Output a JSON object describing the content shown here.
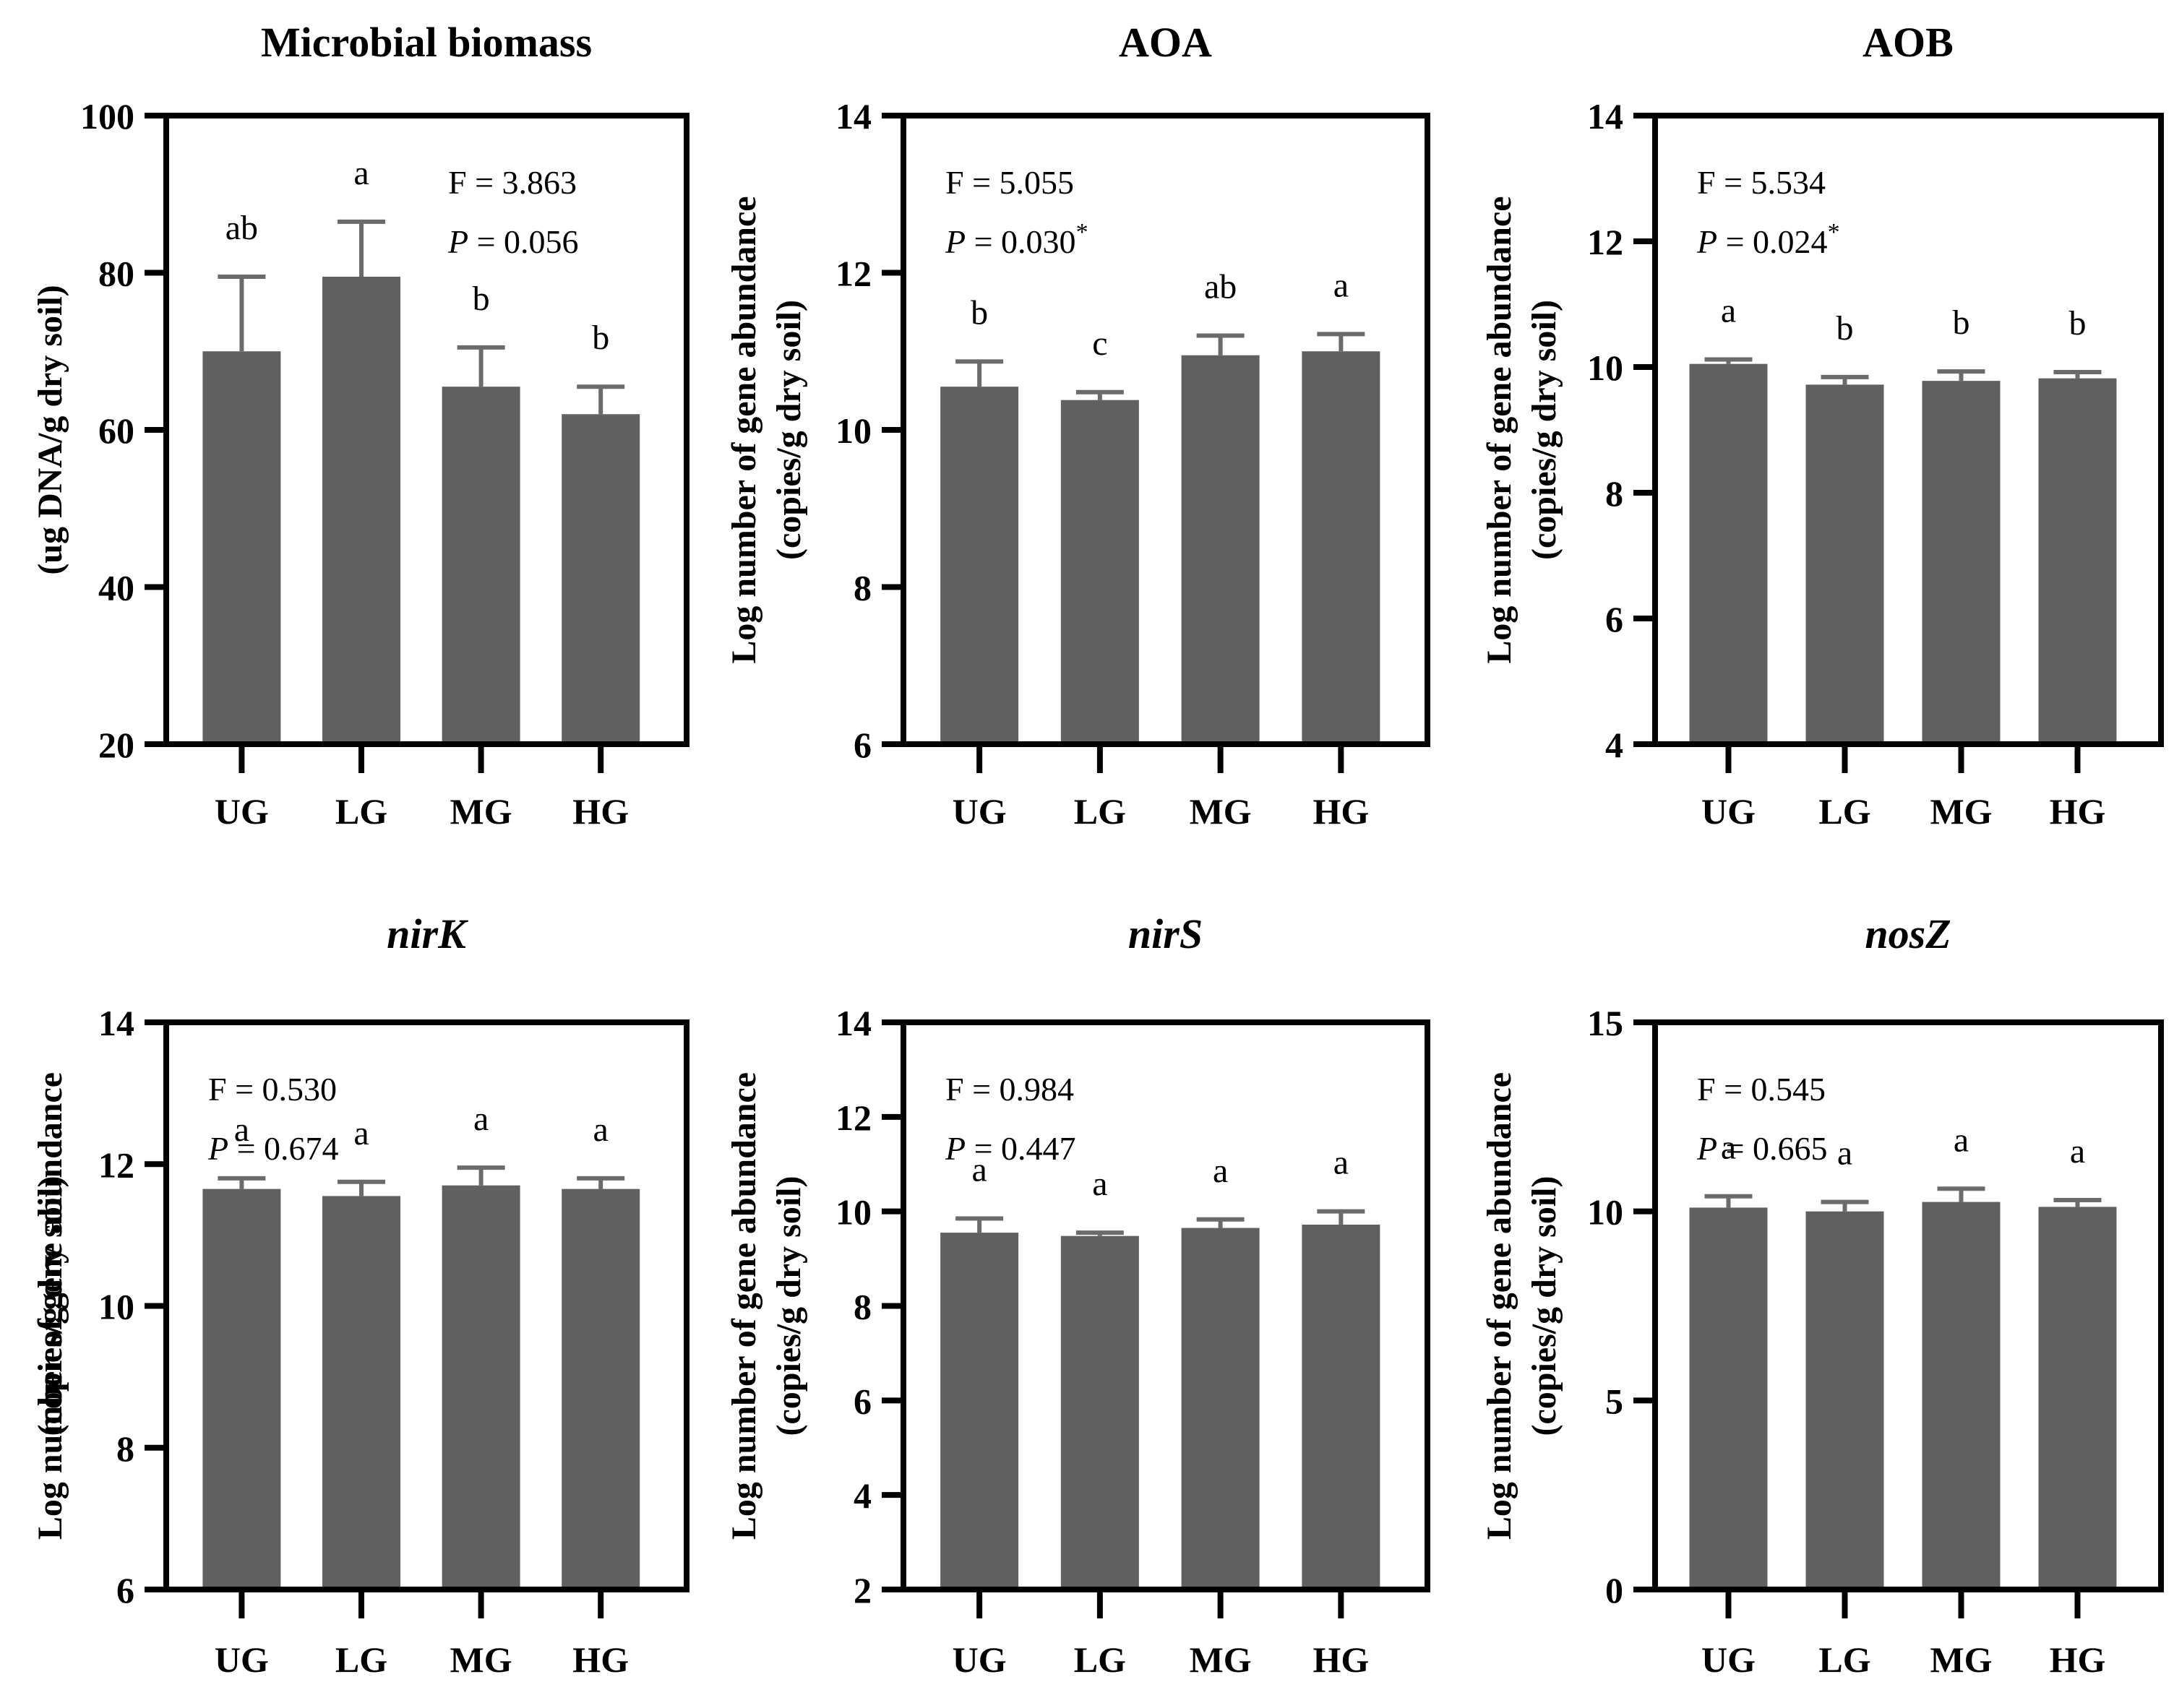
{
  "figure": {
    "background_color": "#ffffff",
    "axis_color": "#000000",
    "bar_color": "#606060",
    "error_bar_color": "#6b6b6b",
    "text_color": "#000000",
    "categories": [
      "UG",
      "LG",
      "MG",
      "HG"
    ]
  },
  "chart_data": [
    {
      "type": "bar",
      "key": "microbial-biomass",
      "title": "Microbial biomass",
      "title_italic": false,
      "ylabel_lines": [
        "(ug DNA/g dry soil)"
      ],
      "xlabel": "",
      "categories": [
        "UG",
        "LG",
        "MG",
        "HG"
      ],
      "values": [
        70,
        79.5,
        65.5,
        62
      ],
      "errors": [
        9.5,
        7,
        5,
        3.5
      ],
      "sig_letters": [
        "ab",
        "a",
        "b",
        "b"
      ],
      "stats": {
        "f_label": "F",
        "f_value": "3.863",
        "p_label": "P",
        "p_value": "0.056",
        "asterisk": false
      },
      "stats_corner": "top-right",
      "ylim": [
        20,
        100
      ],
      "yticks": [
        20,
        40,
        60,
        80,
        100
      ],
      "grid": false,
      "legend": "none"
    },
    {
      "type": "bar",
      "key": "aoa",
      "title": "AOA",
      "title_italic": false,
      "ylabel_lines": [
        "Log number of gene abundance",
        "(copies/g dry soil)"
      ],
      "xlabel": "",
      "categories": [
        "UG",
        "LG",
        "MG",
        "HG"
      ],
      "values": [
        10.55,
        10.38,
        10.95,
        11.0
      ],
      "errors": [
        0.32,
        0.1,
        0.25,
        0.22
      ],
      "sig_letters": [
        "b",
        "c",
        "ab",
        "a"
      ],
      "stats": {
        "f_label": "F",
        "f_value": "5.055",
        "p_label": "P",
        "p_value": "0.030",
        "asterisk": true
      },
      "stats_corner": "top-left",
      "ylim": [
        6,
        14
      ],
      "yticks": [
        6,
        8,
        10,
        12,
        14
      ],
      "grid": false,
      "legend": "none"
    },
    {
      "type": "bar",
      "key": "aob",
      "title": "AOB",
      "title_italic": false,
      "ylabel_lines": [
        "Log number of gene abundance",
        "(copies/g dry soil)"
      ],
      "xlabel": "",
      "categories": [
        "UG",
        "LG",
        "MG",
        "HG"
      ],
      "values": [
        10.05,
        9.72,
        9.78,
        9.82
      ],
      "errors": [
        0.07,
        0.12,
        0.15,
        0.1
      ],
      "sig_letters": [
        "a",
        "b",
        "b",
        "b"
      ],
      "stats": {
        "f_label": "F",
        "f_value": "5.534",
        "p_label": "P",
        "p_value": "0.024",
        "asterisk": true
      },
      "stats_corner": "top-left",
      "ylim": [
        4,
        14
      ],
      "yticks": [
        4,
        6,
        8,
        10,
        12,
        14
      ],
      "grid": false,
      "legend": "none"
    },
    {
      "type": "bar",
      "key": "nirK",
      "title": "nirK",
      "title_italic": true,
      "ylabel_lines": [
        "Log number of gene abundance",
        "(copies/g dry soil)"
      ],
      "xlabel": "",
      "categories": [
        "UG",
        "LG",
        "MG",
        "HG"
      ],
      "values": [
        11.65,
        11.55,
        11.7,
        11.65
      ],
      "errors": [
        0.15,
        0.2,
        0.25,
        0.15
      ],
      "sig_letters": [
        "a",
        "a",
        "a",
        "a"
      ],
      "stats": {
        "f_label": "F",
        "f_value": "0.530",
        "p_label": "P",
        "p_value": "0.674",
        "asterisk": false
      },
      "stats_corner": "top-left",
      "ylim": [
        6,
        14
      ],
      "yticks": [
        6,
        8,
        10,
        12,
        14
      ],
      "grid": false,
      "legend": "none"
    },
    {
      "type": "bar",
      "key": "nirS",
      "title": "nirS",
      "title_italic": true,
      "ylabel_lines": [
        "Log number of gene abundance",
        "(copies/g dry soil)"
      ],
      "xlabel": "",
      "categories": [
        "UG",
        "LG",
        "MG",
        "HG"
      ],
      "values": [
        9.55,
        9.48,
        9.65,
        9.72
      ],
      "errors": [
        0.3,
        0.07,
        0.18,
        0.28
      ],
      "sig_letters": [
        "a",
        "a",
        "a",
        "a"
      ],
      "stats": {
        "f_label": "F",
        "f_value": "0.984",
        "p_label": "P",
        "p_value": "0.447",
        "asterisk": false
      },
      "stats_corner": "top-left",
      "ylim": [
        2,
        14
      ],
      "yticks": [
        2,
        4,
        6,
        8,
        10,
        12,
        14
      ],
      "grid": false,
      "legend": "none"
    },
    {
      "type": "bar",
      "key": "nosZ",
      "title": "nosZ",
      "title_italic": true,
      "ylabel_lines": [
        "Log number of gene abundance",
        "(copies/g dry soil)"
      ],
      "xlabel": "",
      "categories": [
        "UG",
        "LG",
        "MG",
        "HG"
      ],
      "values": [
        10.1,
        10.0,
        10.25,
        10.12
      ],
      "errors": [
        0.3,
        0.25,
        0.35,
        0.18
      ],
      "sig_letters": [
        "a",
        "a",
        "a",
        "a"
      ],
      "stats": {
        "f_label": "F",
        "f_value": "0.545",
        "p_label": "P",
        "p_value": "0.665",
        "asterisk": false
      },
      "stats_corner": "top-left",
      "ylim": [
        0,
        15
      ],
      "yticks": [
        0,
        5,
        10,
        15
      ],
      "grid": false,
      "legend": "none"
    }
  ]
}
